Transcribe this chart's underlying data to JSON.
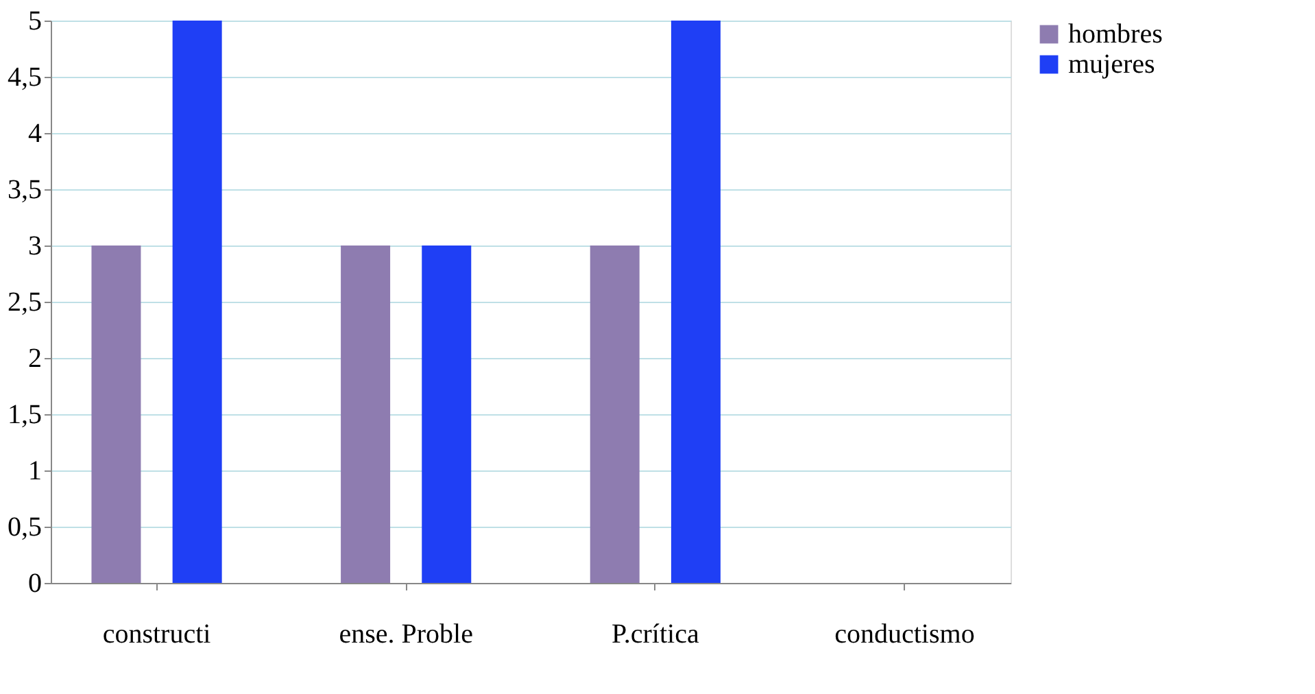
{
  "chart_data": {
    "type": "bar",
    "categories": [
      "constructi",
      "ense. Proble",
      "P.crítica",
      "conductismo"
    ],
    "series": [
      {
        "name": "hombres",
        "color": "#8e7cb0",
        "values": [
          3,
          3,
          3,
          0
        ]
      },
      {
        "name": "mujeres",
        "color": "#1f3ff5",
        "values": [
          5,
          3,
          5,
          0
        ]
      }
    ],
    "ylim": [
      0,
      5
    ],
    "yticks": [
      0,
      {
        "value": 0.5,
        "label": "0,5"
      },
      1,
      {
        "value": 1.5,
        "label": "1,5"
      },
      2,
      {
        "value": 2.5,
        "label": "2,5"
      },
      3,
      {
        "value": 3.5,
        "label": "3,5"
      },
      4,
      {
        "value": 4.5,
        "label": "4,5"
      },
      5
    ],
    "grid": "y",
    "legend": "right"
  }
}
